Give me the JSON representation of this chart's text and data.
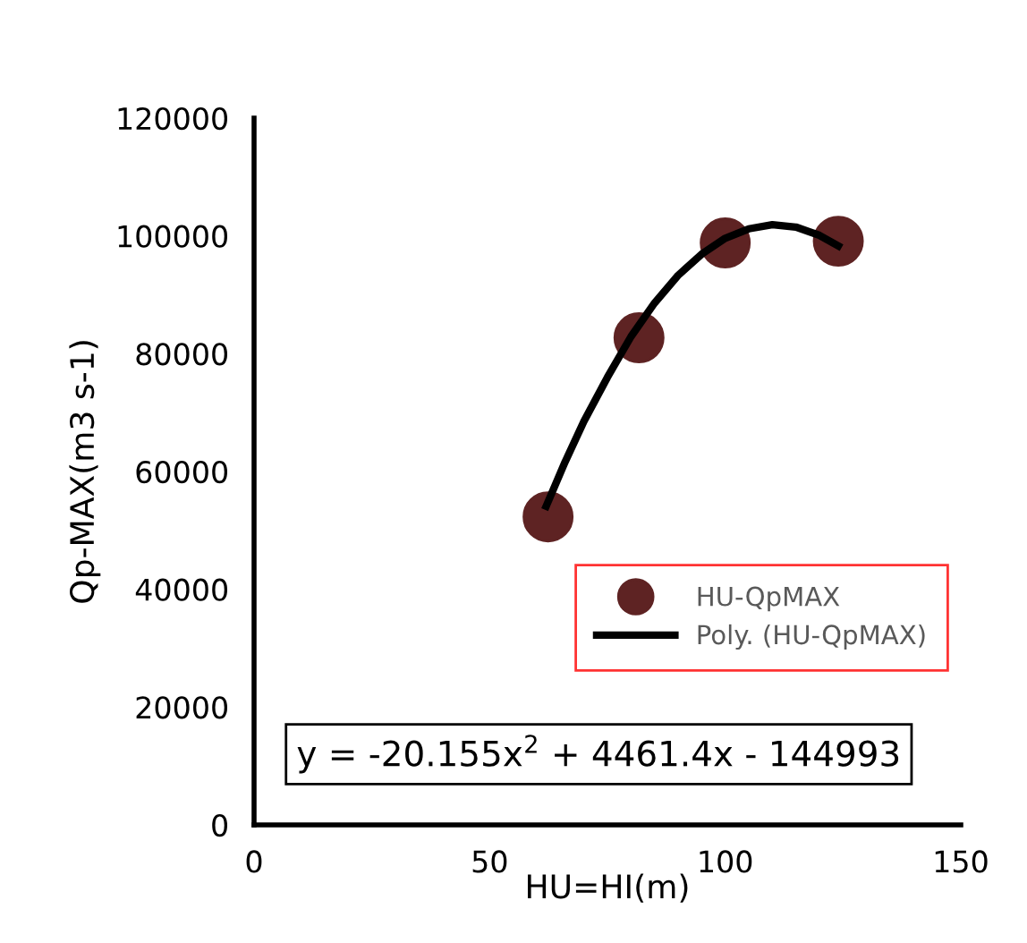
{
  "chart_data": {
    "type": "scatter",
    "xlabel": "HU=HI(m)",
    "ylabel": "Qp-MAX(m3 s-1)",
    "x": [
      62.4,
      81.7,
      100,
      124
    ],
    "series": [
      {
        "name": "HU-QpMAX",
        "color": "#5e2323",
        "marker": "circle",
        "values": [
          52300,
          82700,
          98800,
          99100
        ]
      },
      {
        "name": "Poly. (HU-QpMAX)",
        "type": "line",
        "color": "#000000",
        "x": [
          62,
          66,
          70,
          75,
          80,
          85,
          90,
          95,
          100,
          105,
          110,
          115,
          120,
          124
        ],
        "values": [
          54100,
          61600,
          68500,
          76000,
          82900,
          88600,
          93300,
          96900,
          99600,
          101200,
          101900,
          101500,
          100100,
          98300
        ]
      }
    ],
    "xlim": [
      0,
      150
    ],
    "xticks": [
      0,
      50,
      100,
      150
    ],
    "ylim": [
      0,
      120000
    ],
    "yticks": [
      0,
      20000,
      40000,
      60000,
      80000,
      100000,
      120000
    ],
    "legend": "bottom right",
    "annotations": [
      "y = -20.155x$^{2}$ + 4461.4x - 144993"
    ]
  }
}
